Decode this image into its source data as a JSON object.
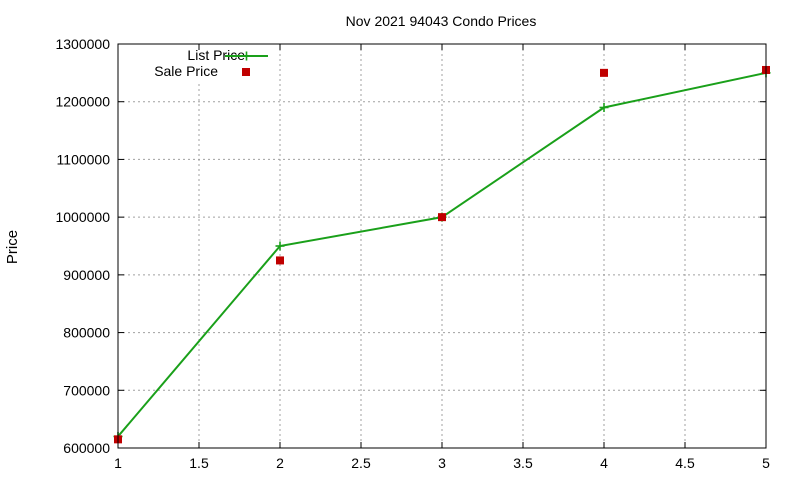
{
  "chart_data": {
    "type": "line",
    "title": "Nov 2021 94043 Condo Prices",
    "xlabel": "",
    "ylabel": "Price",
    "xlim": [
      1,
      5
    ],
    "ylim": [
      600000,
      1300000
    ],
    "x_ticks": [
      "1",
      "1.5",
      "2",
      "2.5",
      "3",
      "3.5",
      "4",
      "4.5",
      "5"
    ],
    "x_tick_values": [
      1,
      1.5,
      2,
      2.5,
      3,
      3.5,
      4,
      4.5,
      5
    ],
    "y_ticks": [
      "600000",
      "700000",
      "800000",
      "900000",
      "1000000",
      "1100000",
      "1200000",
      "1300000"
    ],
    "y_tick_values": [
      600000,
      700000,
      800000,
      900000,
      1000000,
      1100000,
      1200000,
      1300000
    ],
    "grid": true,
    "legend_position": "top-left",
    "series": [
      {
        "name": "List Price",
        "style": "linespoints",
        "marker": "plus",
        "color": "#1aa01a",
        "x": [
          1,
          2,
          3,
          4,
          5
        ],
        "values": [
          620000,
          950000,
          1000000,
          1190000,
          1250000
        ]
      },
      {
        "name": "Sale Price",
        "style": "points",
        "marker": "square",
        "color": "#c00000",
        "x": [
          1,
          2,
          3,
          4,
          5
        ],
        "values": [
          615000,
          925000,
          1000000,
          1250000,
          1255000
        ]
      }
    ]
  }
}
